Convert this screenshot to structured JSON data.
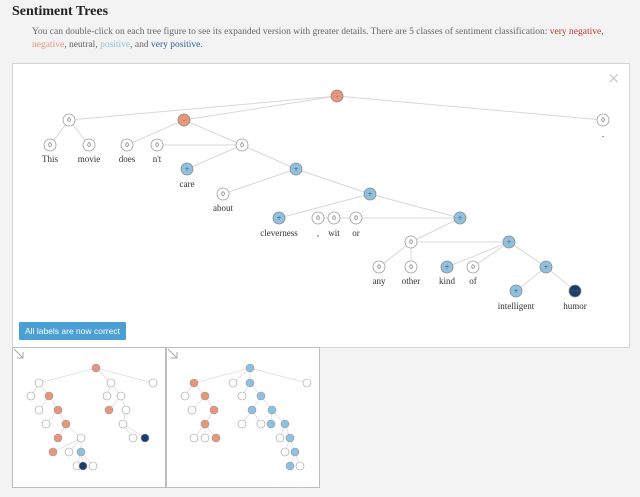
{
  "header": {
    "title": "Sentiment Trees",
    "description_prefix": "You can double-click on each tree figure to see its expanded version with greater details. There are 5 classes of sentiment classification:",
    "class_very_negative": "very negative",
    "sep1": ",",
    "class_negative": "negative",
    "sep2": ", neutral,",
    "class_positive": "positive",
    "sep3": ", and",
    "class_very_positive": "very positive",
    "description_suffix": "."
  },
  "colors": {
    "very_negative": "#c0392b",
    "negative": "#e8967a",
    "neutral": "#ffffff",
    "positive": "#8ec0e0",
    "very_positive": "#1b3d6e",
    "button": "#4a9fd5"
  },
  "main_tree": {
    "words": [
      "This",
      "movie",
      "does",
      "n't",
      "care",
      "about",
      "cleverness",
      ",",
      "wit",
      "or",
      "any",
      "other",
      "kind",
      "of",
      "intelligent",
      "humor",
      "."
    ],
    "node_symbols": {
      "neutral": "0",
      "negative": "-",
      "positive": "+",
      "very_positive": "++"
    }
  },
  "confirm_button": {
    "label": "All labels are now correct"
  },
  "close_button": {
    "label": "×"
  },
  "thumbnails": [
    {
      "name": "thumbnail-tree-1",
      "icon": "expand-arrow-icon"
    },
    {
      "name": "thumbnail-tree-2",
      "icon": "expand-arrow-icon"
    }
  ]
}
